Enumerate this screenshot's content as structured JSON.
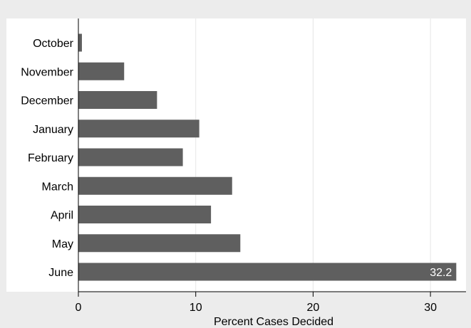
{
  "chart_data": {
    "type": "bar",
    "orientation": "horizontal",
    "categories": [
      "October",
      "November",
      "December",
      "January",
      "February",
      "March",
      "April",
      "May",
      "June"
    ],
    "values": [
      0.3,
      3.9,
      6.7,
      10.3,
      8.9,
      13.1,
      11.3,
      13.8,
      32.2
    ],
    "data_labels": [
      null,
      null,
      null,
      null,
      null,
      null,
      null,
      null,
      "32.2"
    ],
    "xlabel": "Percent Cases Decided",
    "ylabel": "",
    "title": "",
    "xlim": [
      0,
      33
    ],
    "xticks": [
      0,
      10,
      20,
      30
    ],
    "grid": true,
    "colors": {
      "bar": "#5f5f5f",
      "plot_background": "#ffffff",
      "outer_background": "#ececec",
      "grid": "#e6e6e6",
      "label_inside": "#ffffff"
    }
  }
}
